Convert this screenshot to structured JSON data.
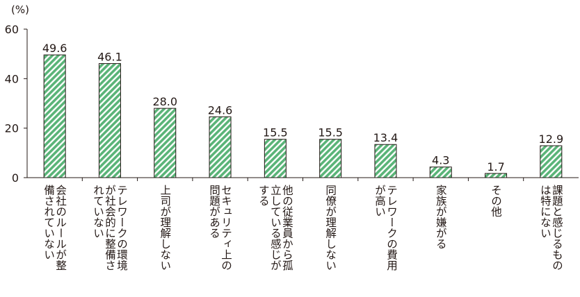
{
  "chart_data": {
    "type": "bar",
    "unit_label": "(%)",
    "ylim": [
      0,
      60
    ],
    "yticks": [
      "0",
      "20",
      "40",
      "60"
    ],
    "grid": false,
    "bar_color": "#5ab478",
    "categories": [
      [
        "会社のルールが整",
        "備されていない"
      ],
      [
        "テレワークの環境",
        "が社会的に整備さ",
        "れていない"
      ],
      [
        "上司が理解しない"
      ],
      [
        "セキュリティ上の",
        "問題がある"
      ],
      [
        "他の従業員から孤",
        "立している感じが",
        "する"
      ],
      [
        "同僚が理解しない"
      ],
      [
        "テレワークの費用",
        "が高い"
      ],
      [
        "家族が嫌がる"
      ],
      [
        "その他"
      ],
      [
        "課題と感じるもの",
        "は特にない"
      ]
    ],
    "values": [
      49.6,
      46.1,
      28.0,
      24.6,
      15.5,
      15.5,
      13.4,
      4.3,
      1.7,
      12.9
    ],
    "value_labels": [
      "49.6",
      "46.1",
      "28.0",
      "24.6",
      "15.5",
      "15.5",
      "13.4",
      "4.3",
      "1.7",
      "12.9"
    ]
  }
}
